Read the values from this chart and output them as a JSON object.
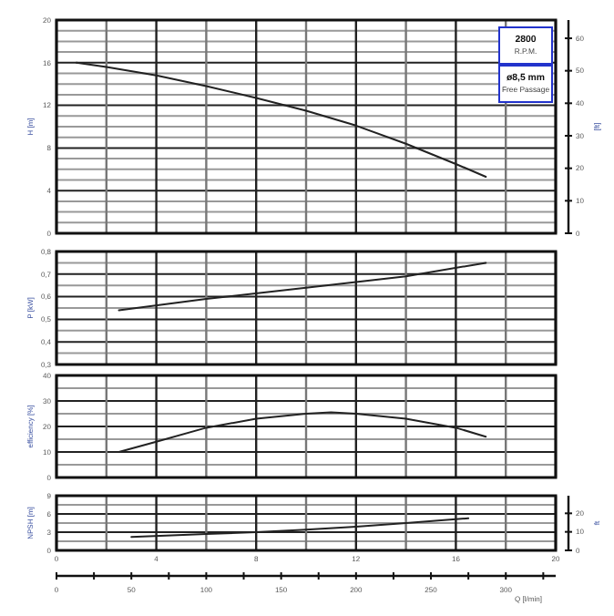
{
  "chart_data": [
    {
      "type": "line",
      "ylabel": "H [m]",
      "y2label": "[ft]",
      "annotations": [
        "2800",
        "R.P.M.",
        "ø8,5 mm",
        "Free Passage"
      ],
      "grid": true,
      "tick_labels": "y",
      "xlim": [
        0,
        20
      ],
      "xticks": [
        0,
        {
          "value": 2,
          "label": null
        },
        4,
        {
          "value": 6,
          "label": null
        },
        8,
        {
          "value": 10,
          "label": null
        },
        12,
        {
          "value": 14,
          "label": null
        },
        16,
        {
          "value": 18,
          "label": null
        },
        20
      ],
      "ylim": [
        0,
        20
      ],
      "yticks": [
        0,
        {
          "value": 1,
          "label": null
        },
        {
          "value": 2,
          "label": null
        },
        {
          "value": 3,
          "label": null
        },
        4,
        {
          "value": 5,
          "label": null
        },
        {
          "value": 6,
          "label": null
        },
        {
          "value": 7,
          "label": null
        },
        8,
        {
          "value": 9,
          "label": null
        },
        {
          "value": 10,
          "label": null
        },
        {
          "value": 11,
          "label": null
        },
        12,
        {
          "value": 13,
          "label": null
        },
        {
          "value": 14,
          "label": null
        },
        {
          "value": 15,
          "label": null
        },
        16,
        {
          "value": 17,
          "label": null
        },
        {
          "value": 18,
          "label": null
        },
        {
          "value": 19,
          "label": null
        },
        20
      ],
      "y2lim": [
        0,
        65.6
      ],
      "y2ticks": [
        0,
        10,
        20,
        30,
        40,
        50,
        60
      ],
      "series": [
        {
          "color": "#222222",
          "x": [
            0.8,
            2,
            4,
            6,
            8,
            10,
            12,
            14,
            16,
            17.2
          ],
          "values": [
            16,
            15.6,
            14.8,
            13.8,
            12.7,
            11.5,
            10.1,
            8.4,
            6.5,
            5.3
          ]
        }
      ]
    },
    {
      "type": "line",
      "ylabel": "P [kW]",
      "grid": true,
      "tick_labels": "y",
      "xlim": [
        0,
        20
      ],
      "xticks": [
        0,
        {
          "value": 2,
          "label": null
        },
        4,
        {
          "value": 6,
          "label": null
        },
        8,
        {
          "value": 10,
          "label": null
        },
        12,
        {
          "value": 14,
          "label": null
        },
        16,
        {
          "value": 18,
          "label": null
        },
        20
      ],
      "ylim": [
        0.3,
        0.8
      ],
      "yticks": [
        {
          "value": 0.3,
          "label": "0,3"
        },
        {
          "value": 0.35,
          "label": null
        },
        {
          "value": 0.4,
          "label": "0,4"
        },
        {
          "value": 0.45,
          "label": null
        },
        {
          "value": 0.5,
          "label": "0,5"
        },
        {
          "value": 0.55,
          "label": null
        },
        {
          "value": 0.6,
          "label": "0,6"
        },
        {
          "value": 0.65,
          "label": null
        },
        {
          "value": 0.7,
          "label": "0,7"
        },
        {
          "value": 0.75,
          "label": null
        },
        {
          "value": 0.8,
          "label": "0,8"
        }
      ],
      "series": [
        {
          "color": "#222222",
          "x": [
            2.5,
            6,
            10,
            14,
            17.2
          ],
          "values": [
            0.54,
            0.59,
            0.64,
            0.69,
            0.75
          ]
        }
      ]
    },
    {
      "type": "line",
      "ylabel": "efficiency [%]",
      "grid": true,
      "tick_labels": "y",
      "xlim": [
        0,
        20
      ],
      "xticks": [
        0,
        {
          "value": 2,
          "label": null
        },
        4,
        {
          "value": 6,
          "label": null
        },
        8,
        {
          "value": 10,
          "label": null
        },
        12,
        {
          "value": 14,
          "label": null
        },
        16,
        {
          "value": 18,
          "label": null
        },
        20
      ],
      "ylim": [
        0,
        40
      ],
      "yticks": [
        0,
        {
          "value": 5,
          "label": null
        },
        10,
        {
          "value": 15,
          "label": null
        },
        20,
        {
          "value": 25,
          "label": null
        },
        30,
        {
          "value": 35,
          "label": null
        },
        40
      ],
      "series": [
        {
          "color": "#222222",
          "x": [
            2.5,
            4,
            6,
            8,
            10,
            11,
            12,
            14,
            16,
            17.2
          ],
          "values": [
            10,
            14,
            19.5,
            23,
            25,
            25.5,
            25,
            23,
            19.5,
            16
          ]
        }
      ]
    },
    {
      "type": "line",
      "ylabel": "NPSH [m]",
      "y2label": "ft",
      "x2label": "Q [l/min]",
      "grid": true,
      "xlim": [
        0,
        20
      ],
      "xticks": [
        0,
        {
          "value": 2,
          "label": null
        },
        4,
        {
          "value": 6,
          "label": null
        },
        8,
        {
          "value": 10,
          "label": null
        },
        12,
        {
          "value": 14,
          "label": null
        },
        16,
        {
          "value": 18,
          "label": null
        },
        20
      ],
      "ylim": [
        0,
        9
      ],
      "yticks": [
        0,
        {
          "value": 1.5,
          "label": null
        },
        3,
        {
          "value": 4.5,
          "label": null
        },
        6,
        {
          "value": 7.5,
          "label": null
        },
        9
      ],
      "y2lim": [
        0,
        29.5
      ],
      "y2ticks": [
        0,
        10,
        20
      ],
      "x2lim": [
        0,
        333.3
      ],
      "x2ticks": [
        0,
        {
          "value": 25,
          "label": null
        },
        50,
        {
          "value": 75,
          "label": null
        },
        100,
        {
          "value": 125,
          "label": null
        },
        150,
        {
          "value": 175,
          "label": null
        },
        200,
        {
          "value": 225,
          "label": null
        },
        250,
        {
          "value": 275,
          "label": null
        },
        300,
        {
          "value": 325,
          "label": null
        }
      ],
      "series": [
        {
          "color": "#222222",
          "x": [
            3,
            6,
            8,
            10,
            12,
            14,
            16.5
          ],
          "values": [
            2.2,
            2.7,
            3,
            3.4,
            3.9,
            4.5,
            5.3
          ]
        }
      ]
    }
  ]
}
